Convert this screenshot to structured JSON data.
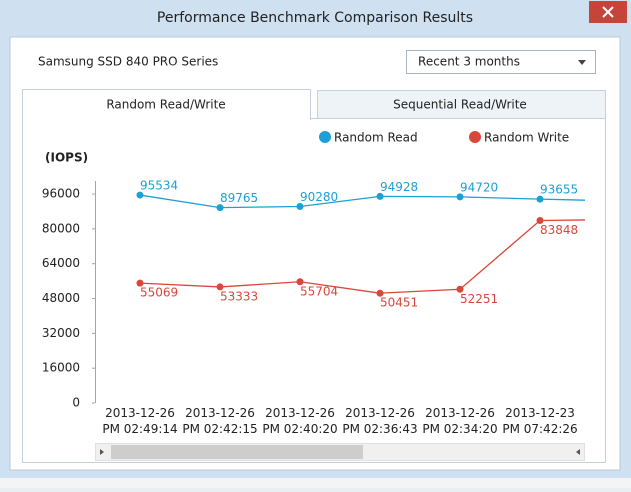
{
  "window": {
    "title": "Performance Benchmark Comparison Results",
    "device": "Samsung SSD 840 PRO Series",
    "period": "Recent 3 months",
    "tabs": [
      "Random Read/Write",
      "Sequential Read/Write"
    ]
  },
  "chart_data": {
    "type": "line",
    "y_label": "(IOPS)",
    "categories": [
      "2013-12-26\nPM 02:49:14",
      "2013-12-26\nPM 02:42:15",
      "2013-12-26\nPM 02:40:20",
      "2013-12-26\nPM 02:36:43",
      "2013-12-26\nPM 02:34:20",
      "2013-12-23\nPM 07:42:26",
      null
    ],
    "series": [
      {
        "name": "Random Read",
        "color": "#1e9fd6",
        "values": [
          95534,
          89765,
          90280,
          94928,
          94720,
          93655,
          92800
        ]
      },
      {
        "name": "Random Write",
        "color": "#d9473a",
        "values": [
          55069,
          53333,
          55704,
          50451,
          52251,
          83848,
          84300
        ]
      }
    ],
    "ylim": [
      0,
      102000
    ],
    "yticks": [
      0,
      16000,
      32000,
      48000,
      64000,
      80000,
      96000
    ]
  }
}
